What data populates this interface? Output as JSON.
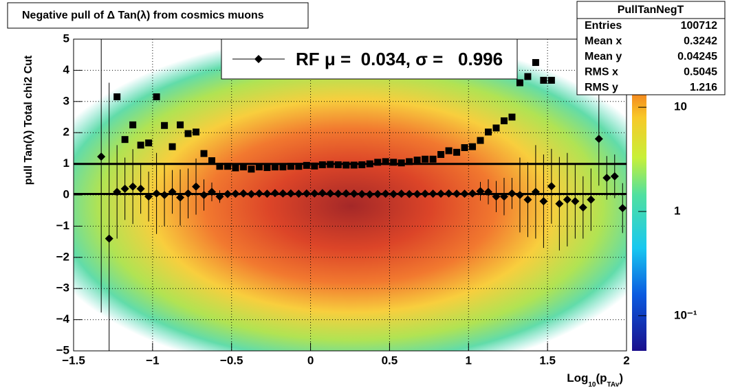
{
  "chart_data": {
    "type": "scatter",
    "title": "Negative pull of Δ Tan(λ) from cosmics muons",
    "y_label": "pull Tan(λ)  Total chi2 Cut",
    "x_label": [
      "Log",
      "10",
      "(p",
      "TAv",
      ")"
    ],
    "legend_label": "RF μ =  0.034, σ =   0.996",
    "fit_lines": [
      0.034,
      0.996
    ],
    "x": [
      -1.475,
      -1.425,
      -1.375,
      -1.325,
      -1.275,
      -1.225,
      -1.175,
      -1.125,
      -1.075,
      -1.025,
      -0.975,
      -0.925,
      -0.875,
      -0.825,
      -0.775,
      -0.725,
      -0.675,
      -0.625,
      -0.575,
      -0.525,
      -0.475,
      -0.425,
      -0.375,
      -0.325,
      -0.275,
      -0.225,
      -0.175,
      -0.125,
      -0.075,
      -0.025,
      0.025,
      0.075,
      0.125,
      0.175,
      0.225,
      0.275,
      0.325,
      0.375,
      0.425,
      0.475,
      0.525,
      0.575,
      0.625,
      0.675,
      0.725,
      0.775,
      0.825,
      0.875,
      0.925,
      0.975,
      1.025,
      1.075,
      1.125,
      1.175,
      1.225,
      1.275,
      1.325,
      1.375,
      1.425,
      1.475,
      1.525,
      1.575,
      1.625,
      1.675,
      1.725,
      1.775,
      1.825,
      1.875,
      1.925,
      1.975
    ],
    "series": [
      {
        "marker": "diamond",
        "color": "#000000",
        "values": [
          null,
          null,
          null,
          1.23,
          -1.4,
          0.1,
          0.2,
          0.27,
          0.2,
          -0.05,
          0.05,
          0,
          0.1,
          -0.08,
          0.05,
          0.27,
          0,
          0.1,
          -0.05,
          0.03,
          0.04,
          0.05,
          0.03,
          0.05,
          0.04,
          0.06,
          0.05,
          0.05,
          0.04,
          0.05,
          0.05,
          0.06,
          0.05,
          0.04,
          0.05,
          0.04,
          0.03,
          0.02,
          0.03,
          0.04,
          0.03,
          0.04,
          0.03,
          0.03,
          0.04,
          0.04,
          0.04,
          0.05,
          0.04,
          0.04,
          0.05,
          0.12,
          0.1,
          -0.05,
          -0.05,
          0.05,
          0,
          -0.15,
          0.1,
          -0.2,
          0.28,
          -0.28,
          -0.15,
          -0.2,
          -0.4,
          -0.15,
          1.8,
          0.55,
          0.6,
          -0.42
        ],
        "errors": [
          null,
          null,
          null,
          5,
          5,
          1.5,
          1,
          1.2,
          0.8,
          0.8,
          1.3,
          1,
          0.7,
          0.9,
          0.8,
          0.9,
          0.5,
          0.3,
          0.2,
          0.05,
          0.05,
          0.05,
          0.05,
          0.05,
          0.05,
          0.05,
          0.05,
          0.05,
          0.05,
          0.05,
          0.05,
          0.05,
          0.05,
          0.05,
          0.05,
          0.05,
          0.05,
          0.05,
          0.05,
          0.05,
          0.05,
          0.05,
          0.05,
          0.05,
          0.05,
          0.05,
          0.05,
          0.05,
          0.05,
          0.05,
          0.05,
          0.3,
          0.4,
          0.5,
          0.6,
          0.5,
          1.2,
          1.2,
          1.5,
          1.5,
          1.2,
          1.5,
          1.5,
          1.2,
          1,
          1,
          1.5,
          0.7,
          0.7,
          0.8
        ]
      },
      {
        "marker": "square",
        "color": "#000000",
        "values": [
          null,
          null,
          null,
          null,
          null,
          3.15,
          1.78,
          2.25,
          1.6,
          1.67,
          3.15,
          2.23,
          1.55,
          2.25,
          1.97,
          2.02,
          1.33,
          1.1,
          0.92,
          0.92,
          0.87,
          0.9,
          0.83,
          0.9,
          0.88,
          0.9,
          0.9,
          0.92,
          0.92,
          0.95,
          0.93,
          0.97,
          0.98,
          0.97,
          0.96,
          0.96,
          0.97,
          1,
          1.05,
          1.07,
          1.05,
          1.03,
          1.07,
          1.12,
          1.15,
          1.15,
          1.3,
          1.42,
          1.37,
          1.52,
          1.55,
          1.75,
          2.02,
          2.15,
          2.38,
          2.5,
          3.6,
          3.8,
          4.25,
          3.68,
          3.68,
          null,
          null,
          null,
          null,
          null,
          null,
          null,
          null,
          null
        ]
      }
    ],
    "xlim": [
      -1.5,
      2
    ],
    "xticks": [
      {
        "value": -1.5,
        "label": "−1.5"
      },
      {
        "value": -1,
        "label": "−1"
      },
      {
        "value": -0.5,
        "label": "−0.5"
      },
      0,
      0.5,
      1,
      1.5,
      2
    ],
    "ylim": [
      -5,
      5
    ],
    "yticks": [
      {
        "value": -5,
        "label": "−5"
      },
      {
        "value": -4,
        "label": "−4"
      },
      {
        "value": -3,
        "label": "−3"
      },
      {
        "value": -2,
        "label": "−2"
      },
      {
        "value": -1,
        "label": "−1"
      },
      0,
      1,
      2,
      3,
      4,
      5
    ],
    "zlim": [
      0.046,
      45
    ],
    "zlog": true,
    "zticks": [
      {
        "value": 0.1,
        "label": "10⁻¹"
      },
      1,
      10
    ],
    "grid": true,
    "stats": {
      "name": "PullTanNegT",
      "rows": [
        [
          "Entries",
          100712
        ],
        [
          "Mean x",
          0.3242
        ],
        [
          "Mean y",
          0.04245
        ],
        [
          "RMS x",
          0.5045
        ],
        [
          "RMS y",
          1.216
        ]
      ]
    }
  }
}
